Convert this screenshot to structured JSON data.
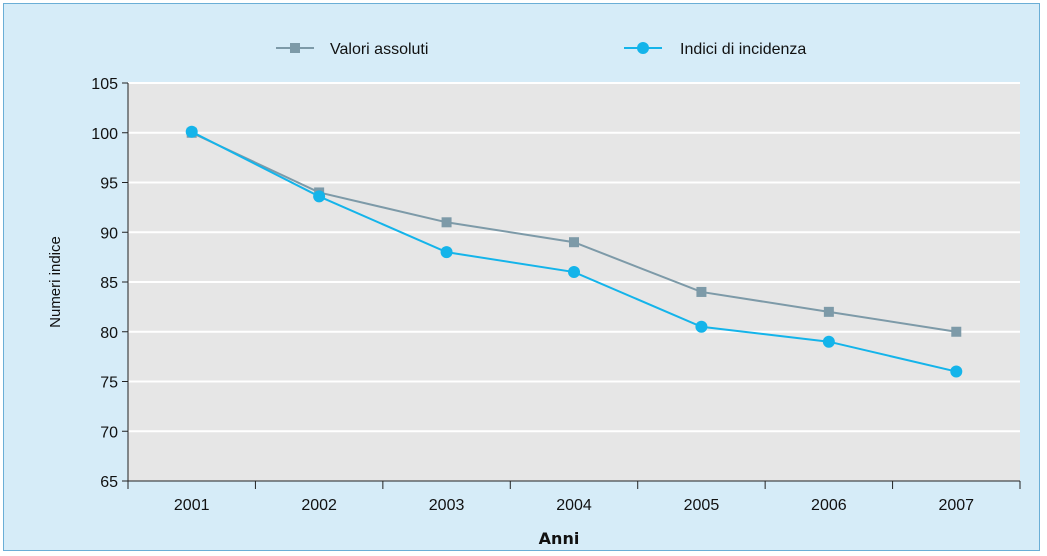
{
  "chart_data": {
    "type": "line",
    "title": "",
    "xlabel": "Anni",
    "ylabel": "Numeri indice",
    "categories": [
      "2001",
      "2002",
      "2003",
      "2004",
      "2005",
      "2006",
      "2007"
    ],
    "ylim": [
      65,
      105
    ],
    "yticks": [
      65,
      70,
      75,
      80,
      85,
      90,
      95,
      100,
      105
    ],
    "grid": true,
    "legend_position": "top",
    "series": [
      {
        "name": "Valori assoluti",
        "values": [
          100,
          94,
          91,
          89,
          84,
          82,
          80
        ],
        "color": "#7d9aa8",
        "marker": "square"
      },
      {
        "name": "Indici di incidenza",
        "values": [
          100.1,
          93.6,
          88,
          86,
          80.5,
          79,
          76
        ],
        "color": "#14b4ea",
        "marker": "circle"
      }
    ]
  },
  "colors": {
    "background": "#d6ecf8",
    "plot_area": "#e6e6e6",
    "gridline": "#ffffff",
    "axis": "#222222"
  }
}
